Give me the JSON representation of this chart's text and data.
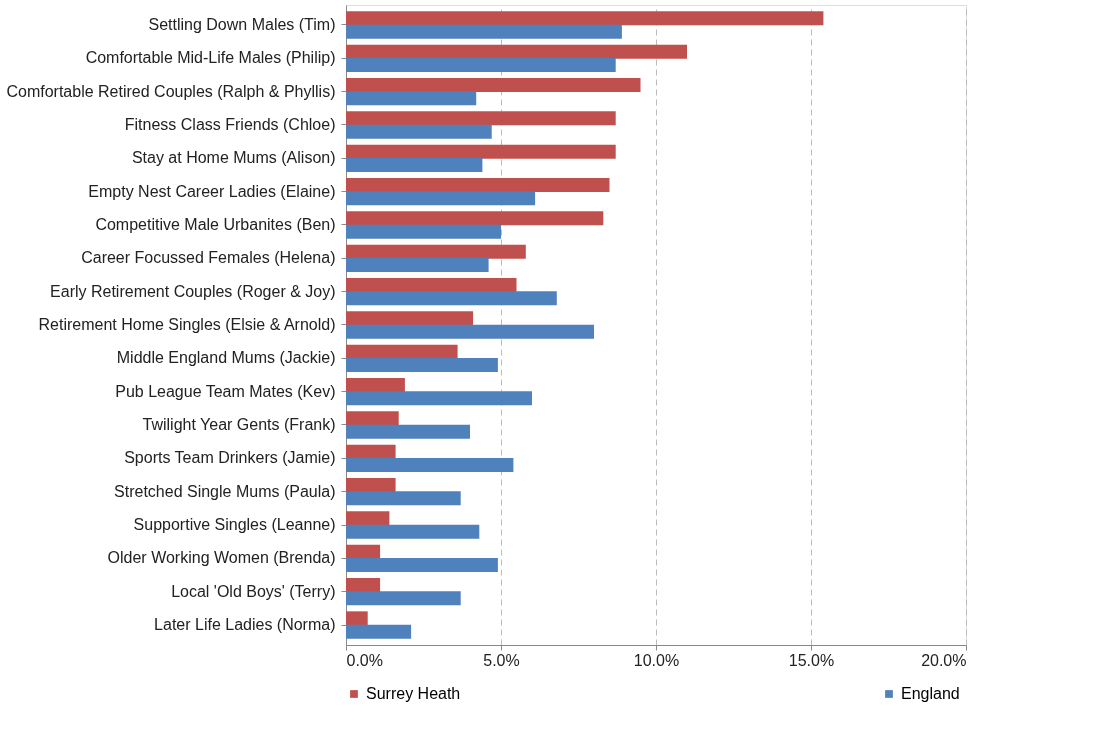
{
  "chart_data": {
    "type": "bar",
    "orientation": "horizontal",
    "categories": [
      "Settling Down Males (Tim)",
      "Comfortable Mid-Life Males (Philip)",
      "Comfortable Retired Couples (Ralph & Phyllis)",
      "Fitness Class Friends (Chloe)",
      "Stay at Home Mums (Alison)",
      "Empty Nest Career Ladies (Elaine)",
      "Competitive Male Urbanites (Ben)",
      "Career Focussed Females (Helena)",
      "Early Retirement Couples (Roger & Joy)",
      "Retirement Home Singles (Elsie & Arnold)",
      "Middle England Mums (Jackie)",
      "Pub League Team Mates (Kev)",
      "Twilight Year Gents (Frank)",
      "Sports Team Drinkers (Jamie)",
      "Stretched Single Mums (Paula)",
      "Supportive Singles (Leanne)",
      "Older Working Women (Brenda)",
      "Local 'Old Boys' (Terry)",
      "Later Life Ladies (Norma)"
    ],
    "series": [
      {
        "name": "Surrey Heath",
        "color": "#c0504d",
        "values": [
          15.4,
          11.0,
          9.5,
          8.7,
          8.7,
          8.5,
          8.3,
          5.8,
          5.5,
          4.1,
          3.6,
          1.9,
          1.7,
          1.6,
          1.6,
          1.4,
          1.1,
          1.1,
          0.7
        ]
      },
      {
        "name": "England",
        "color": "#4f81bd",
        "values": [
          8.9,
          8.7,
          4.2,
          4.7,
          4.4,
          6.1,
          5.0,
          4.6,
          6.8,
          8.0,
          4.9,
          6.0,
          4.0,
          5.4,
          3.7,
          4.3,
          4.9,
          3.7,
          2.1
        ]
      }
    ],
    "xlim": [
      0,
      20
    ],
    "xticks": [
      {
        "value": 0,
        "label": "0.0%"
      },
      {
        "value": 5,
        "label": "5.0%"
      },
      {
        "value": 10,
        "label": "10.0%"
      },
      {
        "value": 15,
        "label": "15.0%"
      },
      {
        "value": 20,
        "label": "20.0%"
      }
    ],
    "grid": "x",
    "legend": "bottom"
  }
}
